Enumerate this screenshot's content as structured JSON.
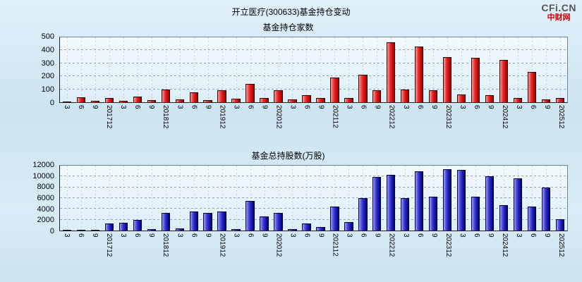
{
  "header": {
    "title": "开立医疗(300633)基金持仓变动",
    "logo": "CFi.CN",
    "logo_sub": "中财网"
  },
  "chart_data": [
    {
      "type": "bar",
      "title": "基金持仓家数",
      "categories": [
        "3",
        "6",
        "9",
        "201712",
        "3",
        "6",
        "9",
        "201812",
        "3",
        "6",
        "9",
        "201912",
        "3",
        "6",
        "9",
        "202012",
        "3",
        "6",
        "9",
        "202112",
        "3",
        "6",
        "9",
        "202212",
        "3",
        "6",
        "9",
        "202312",
        "3",
        "6",
        "9",
        "202412",
        "3",
        "6",
        "9",
        "202512"
      ],
      "values": [
        5,
        40,
        10,
        30,
        10,
        45,
        15,
        100,
        20,
        75,
        15,
        90,
        25,
        140,
        30,
        90,
        20,
        55,
        35,
        190,
        30,
        210,
        90,
        460,
        100,
        430,
        90,
        350,
        60,
        340,
        55,
        325,
        30,
        235,
        20,
        35
      ],
      "xlabel": "",
      "ylabel": "",
      "ylim": [
        0,
        500
      ],
      "yticks": [
        0,
        100,
        200,
        300,
        400,
        500
      ],
      "grid": true,
      "legend_position": "none",
      "bar_colors": {
        "light": "#ff9a9a",
        "main": "#e82222",
        "dark": "#9c0000",
        "border": "#2a0000"
      }
    },
    {
      "type": "bar",
      "title": "基金总持股数(万股)",
      "categories": [
        "3",
        "6",
        "9",
        "201712",
        "3",
        "6",
        "9",
        "201812",
        "3",
        "6",
        "9",
        "201912",
        "3",
        "6",
        "9",
        "202012",
        "3",
        "6",
        "9",
        "202112",
        "3",
        "6",
        "9",
        "202212",
        "3",
        "6",
        "9",
        "202312",
        "3",
        "6",
        "9",
        "202412",
        "3",
        "6",
        "9",
        "202512"
      ],
      "values": [
        100,
        150,
        80,
        1300,
        1400,
        2000,
        200,
        3300,
        400,
        3500,
        3300,
        3500,
        200,
        5500,
        2600,
        3300,
        200,
        1300,
        600,
        4400,
        1600,
        6000,
        9900,
        10300,
        6000,
        11000,
        6300,
        11300,
        11200,
        6300,
        10000,
        4700,
        9600,
        4500,
        8000,
        2100
      ],
      "xlabel": "",
      "ylabel": "",
      "ylim": [
        0,
        12000
      ],
      "yticks": [
        0,
        2000,
        4000,
        6000,
        8000,
        10000,
        12000
      ],
      "grid": true,
      "legend_position": "none",
      "bar_colors": {
        "light": "#9a9aff",
        "main": "#3232cf",
        "dark": "#000078",
        "border": "#000030"
      }
    }
  ]
}
